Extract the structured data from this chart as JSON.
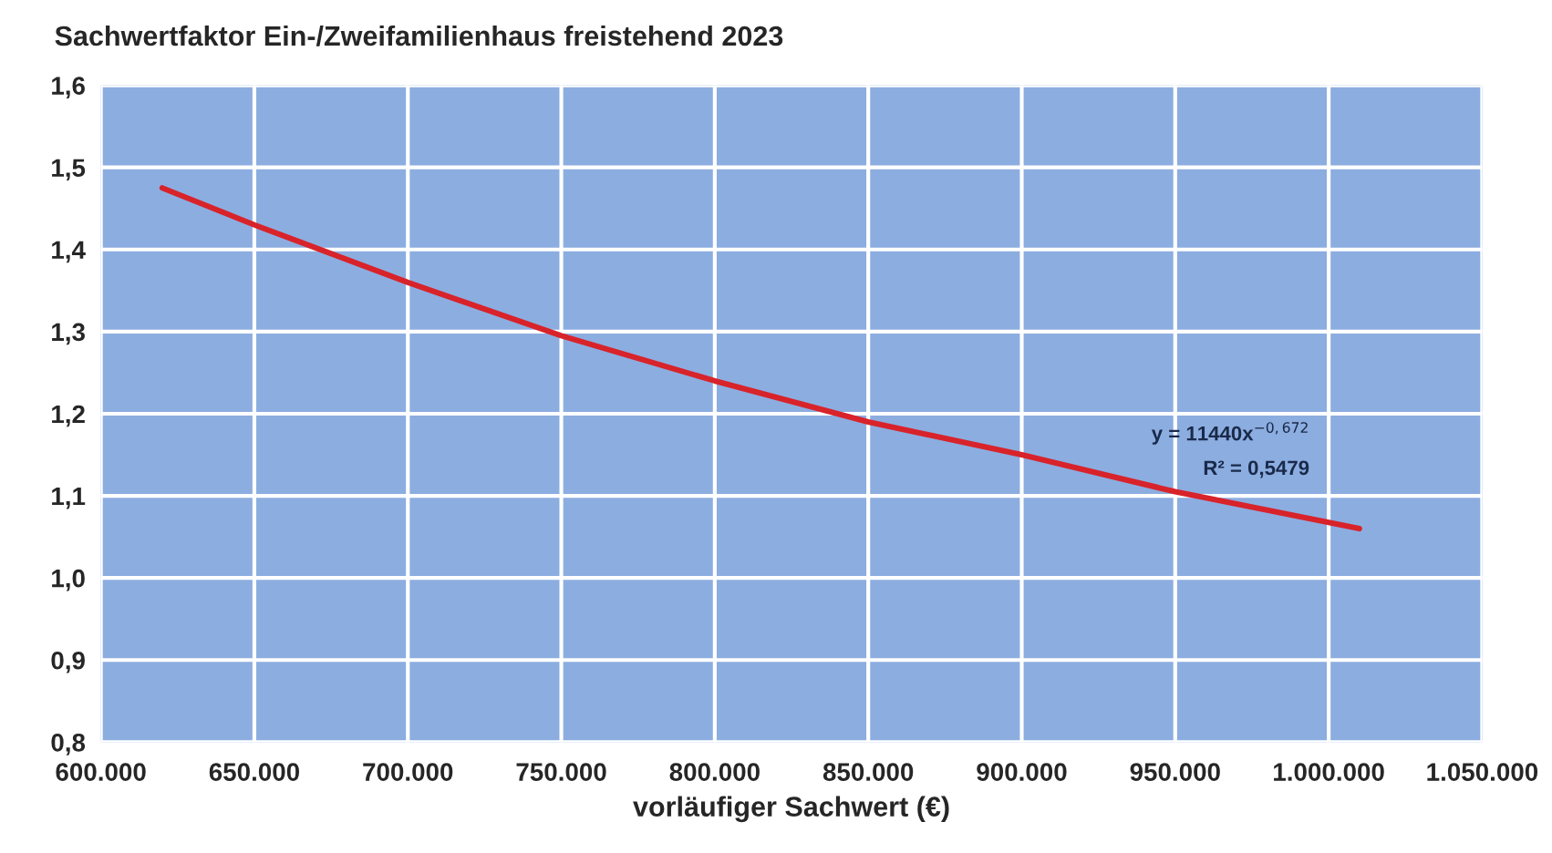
{
  "chart_data": {
    "type": "line",
    "title": "Sachwertfaktor Ein-/Zweifamilienhaus freistehend 2023",
    "xlabel": "vorläufiger Sachwert (€)",
    "x": [
      620000,
      650000,
      700000,
      750000,
      800000,
      850000,
      900000,
      950000,
      1010000
    ],
    "series": [
      {
        "color": "#d8232a",
        "values": [
          1.475,
          1.43,
          1.36,
          1.295,
          1.24,
          1.19,
          1.15,
          1.105,
          1.06
        ]
      }
    ],
    "xlim": [
      600000,
      1050000
    ],
    "xticks": [
      {
        "value": 600000,
        "label": "600.000"
      },
      {
        "value": 650000,
        "label": "650.000"
      },
      {
        "value": 700000,
        "label": "700.000"
      },
      {
        "value": 750000,
        "label": "750.000"
      },
      {
        "value": 800000,
        "label": "800.000"
      },
      {
        "value": 850000,
        "label": "850.000"
      },
      {
        "value": 900000,
        "label": "900.000"
      },
      {
        "value": 950000,
        "label": "950.000"
      },
      {
        "value": 1000000,
        "label": "1.000.000"
      },
      {
        "value": 1050000,
        "label": "1.050.000"
      }
    ],
    "ylim": [
      0.8,
      1.6
    ],
    "yticks": [
      {
        "value": 0.8,
        "label": "0,8"
      },
      {
        "value": 0.9,
        "label": "0,9"
      },
      {
        "value": 1.0,
        "label": "1,0"
      },
      {
        "value": 1.1,
        "label": "1,1"
      },
      {
        "value": 1.2,
        "label": "1,2"
      },
      {
        "value": 1.3,
        "label": "1,3"
      },
      {
        "value": 1.4,
        "label": "1,4"
      },
      {
        "value": 1.5,
        "label": "1,5"
      },
      {
        "value": 1.6,
        "label": "1,6"
      }
    ],
    "grid": true,
    "marker": "none",
    "line_style": "solid",
    "legend": false,
    "annotations": [
      "y = 11440x$^{−0,672}$",
      "R² = 0,5479"
    ]
  }
}
